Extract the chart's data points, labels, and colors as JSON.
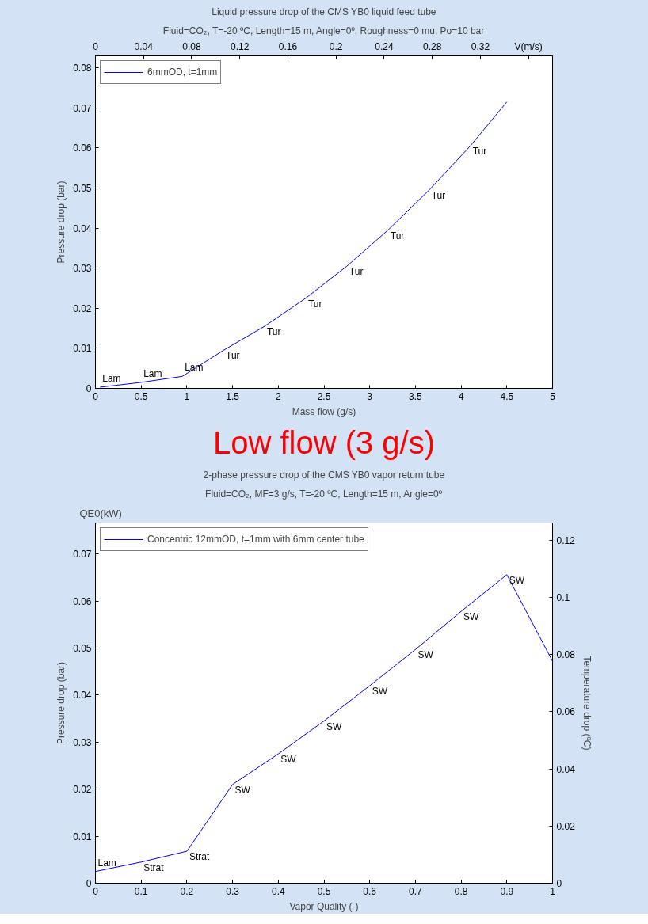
{
  "chart_data": [
    {
      "type": "line",
      "title": "Liquid pressure drop of the CMS YB0 liquid feed tube",
      "subtitle": "Fluid=CO₂, T=-20 ºC, Length=15 m, Angle=0º, Roughness=0 mu, Po=10 bar",
      "xlabel": "Mass flow (g/s)",
      "ylabel": "Pressure drop (bar)",
      "x": [
        0.05,
        0.5,
        0.95,
        1.4,
        1.85,
        2.3,
        2.75,
        3.2,
        3.65,
        4.1,
        4.5
      ],
      "series": [
        {
          "name": "6mmOD, t=1mm",
          "color": "#0000ff",
          "values": [
            0.0003,
            0.0015,
            0.003,
            0.0095,
            0.0155,
            0.0225,
            0.0305,
            0.0395,
            0.0495,
            0.0605,
            0.0715
          ]
        }
      ],
      "xlim": [
        0,
        5
      ],
      "xticks": [
        0,
        0.5,
        1,
        1.5,
        2,
        2.5,
        3,
        3.5,
        4,
        4.5,
        5
      ],
      "ylim": [
        0,
        0.083
      ],
      "yticks": [
        0,
        0.01,
        0.02,
        0.03,
        0.04,
        0.05,
        0.06,
        0.07,
        0.08
      ],
      "x2lim": [
        0,
        0.38
      ],
      "x2ticks": [
        0,
        0.04,
        0.08,
        0.12,
        0.16,
        0.2,
        0.24,
        0.28,
        0.32,
        {
          "value": 0.36,
          "label": "V(m/s)"
        }
      ],
      "grid": false,
      "legend": "top left",
      "marker": "none",
      "line_style": "solid",
      "annotations": [
        {
          "text": "Lam",
          "x": 0.05,
          "y": 0.0003
        },
        {
          "text": "Lam",
          "x": 0.5,
          "y": 0.0015
        },
        {
          "text": "Lam",
          "x": 0.95,
          "y": 0.003
        },
        {
          "text": "Tur",
          "x": 1.4,
          "y": 0.0095
        },
        {
          "text": "Tur",
          "x": 1.85,
          "y": 0.0155
        },
        {
          "text": "Tur",
          "x": 2.3,
          "y": 0.0225
        },
        {
          "text": "Tur",
          "x": 2.75,
          "y": 0.0305
        },
        {
          "text": "Tur",
          "x": 3.2,
          "y": 0.0395
        },
        {
          "text": "Tur",
          "x": 3.65,
          "y": 0.0495
        },
        {
          "text": "Tur",
          "x": 4.1,
          "y": 0.0605
        },
        "Low flow (3 g/s)"
      ]
    },
    {
      "type": "line",
      "title": "2-phase pressure drop of the CMS YB0 vapor return tube",
      "subtitle": "Fluid=CO₂, MF=3 g/s, T=-20 ºC, Length=15 m, Angle=0º",
      "xlabel": "Vapor Quality (-)",
      "ylabel": "Pressure drop (bar)",
      "y2label": "Temperature drop (ºC)",
      "x": [
        0,
        0.1,
        0.2,
        0.3,
        0.4,
        0.5,
        0.6,
        0.7,
        0.8,
        0.9,
        1.0
      ],
      "series": [
        {
          "name": "Concentric 12mmOD, t=1mm with 6mm center tube",
          "color": "#0000ff",
          "values": [
            0.0025,
            0.0045,
            0.0068,
            0.021,
            0.0275,
            0.0345,
            0.042,
            0.0497,
            0.0578,
            0.0656,
            0.0472
          ]
        }
      ],
      "xlim": [
        0,
        1
      ],
      "xticks": [
        0,
        0.1,
        0.2,
        0.3,
        0.4,
        0.5,
        0.6,
        0.7,
        0.8,
        0.9,
        1
      ],
      "ylim": [
        0,
        0.0766
      ],
      "yticks": [
        0,
        0.01,
        0.02,
        0.03,
        0.04,
        0.05,
        0.06,
        0.07
      ],
      "y2lim": [
        0,
        0.126
      ],
      "y2ticks": [
        0,
        0.02,
        0.04,
        0.06,
        0.08,
        0.1,
        0.12
      ],
      "grid": false,
      "legend": "top left",
      "marker": "none",
      "line_style": "solid",
      "annotations": [
        {
          "text": "Lam",
          "x": 0,
          "y": 0.0025
        },
        {
          "text": "Strat",
          "x": 0.1,
          "y": 0.0045
        },
        {
          "text": "Strat",
          "x": 0.2,
          "y": 0.0068
        },
        {
          "text": "SW",
          "x": 0.3,
          "y": 0.021
        },
        {
          "text": "SW",
          "x": 0.4,
          "y": 0.0275
        },
        {
          "text": "SW",
          "x": 0.5,
          "y": 0.0345
        },
        {
          "text": "SW",
          "x": 0.6,
          "y": 0.042
        },
        {
          "text": "SW",
          "x": 0.7,
          "y": 0.0497
        },
        {
          "text": "SW",
          "x": 0.8,
          "y": 0.0578
        },
        {
          "text": "SW",
          "x": 0.9,
          "y": 0.0656
        },
        "QE0(kW)"
      ]
    }
  ]
}
